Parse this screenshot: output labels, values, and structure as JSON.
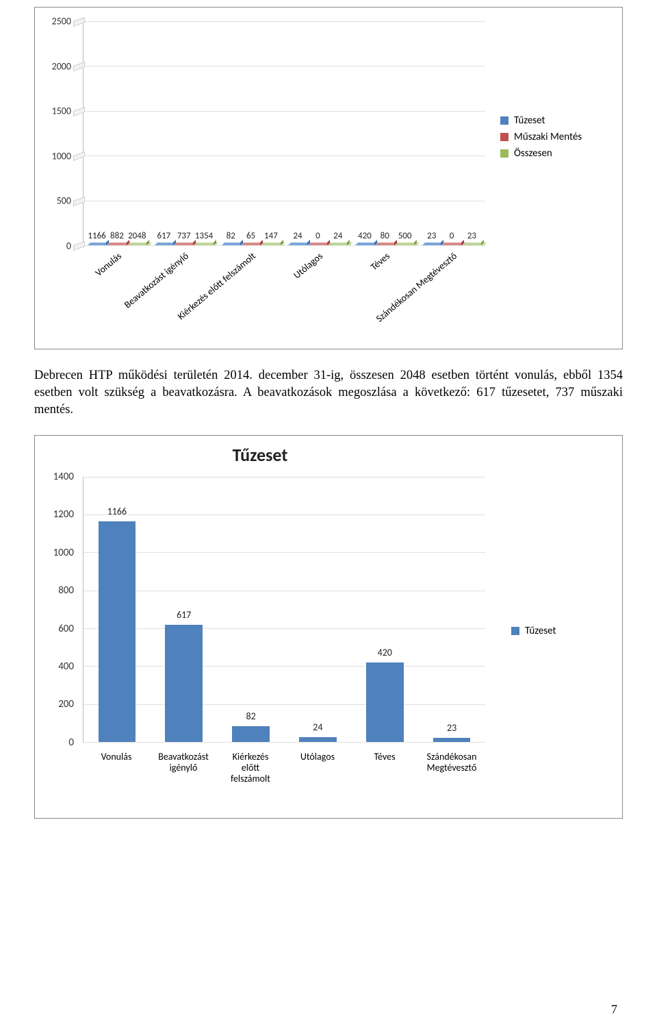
{
  "chart1": {
    "type": "grouped-bar",
    "ymax": 2500,
    "ytick_step": 500,
    "categories": [
      "Vonulás",
      "Beavatkozást igénylő",
      "Kiérkezés előtt felszámolt",
      "Utólagos",
      "Téves",
      "Szándékosan Megtévesztő"
    ],
    "series": [
      {
        "name": "Tűzeset",
        "color": "#4f81bd",
        "color_light": "#7ba6da",
        "color_dark": "#3a6aa0",
        "values": [
          1166,
          617,
          82,
          24,
          420,
          23
        ]
      },
      {
        "name": "Műszaki Mentés",
        "color": "#c0504d",
        "color_light": "#d98b89",
        "color_dark": "#9c3d3a",
        "values": [
          882,
          737,
          65,
          0,
          80,
          0
        ]
      },
      {
        "name": "Összesen",
        "color": "#9bbb59",
        "color_light": "#bfd79a",
        "color_dark": "#7a9a3f",
        "values": [
          2048,
          1354,
          147,
          24,
          500,
          23
        ]
      }
    ],
    "background_color": "#ffffff",
    "grid_color": "#e0e0e0",
    "label_fontsize": 13
  },
  "paragraph": "Debrecen HTP működési területén 2014. december 31-ig, összesen 2048 esetben történt vonulás, ebből 1354 esetben volt szükség a beavatkozásra. A beavatkozások megoszlása a következő: 617 tűzesetet, 737 műszaki mentés.",
  "chart2": {
    "type": "bar",
    "title": "Tűzeset",
    "title_fontsize": 26,
    "ymax": 1400,
    "ytick_step": 200,
    "categories": [
      "Vonulás",
      "Beavatkozást\nigénylő",
      "Kiérkezés\nelőtt\nfelszámolt",
      "Utólagos",
      "Téves",
      "Szándékosan\nMegtévesztő"
    ],
    "series_name": "Tűzeset",
    "bar_color": "#4f81bd",
    "values": [
      1166,
      617,
      82,
      24,
      420,
      23
    ],
    "background_color": "#ffffff",
    "grid_color": "#e0e0e0",
    "label_fontsize": 14
  },
  "page_number": "7"
}
